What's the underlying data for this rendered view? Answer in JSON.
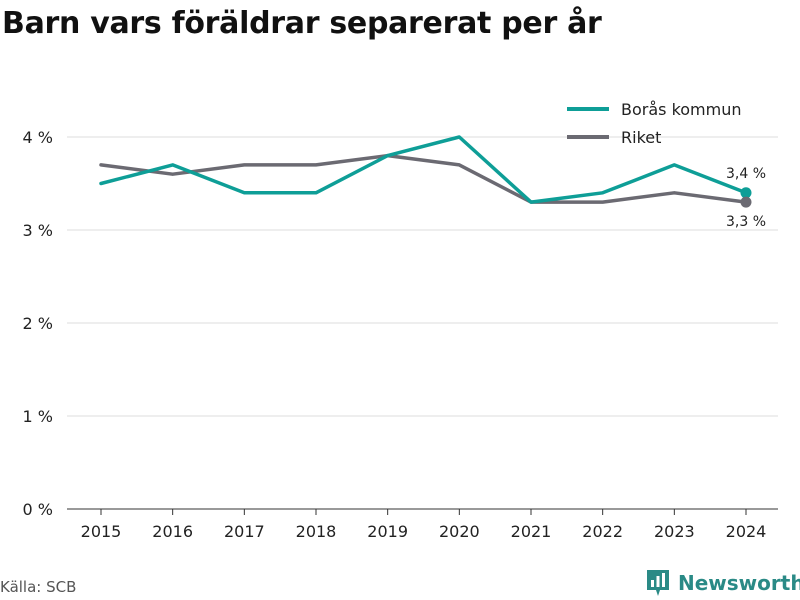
{
  "title": "Barn vars föräldrar separerat per år",
  "source": "Källa: SCB",
  "brand": {
    "name": "Newsworthy",
    "icon": "bar-chart-logo-icon",
    "color": "#2a8a86"
  },
  "chart_data": {
    "type": "line",
    "title": "Barn vars föräldrar separerat per år",
    "x": [
      "2015",
      "2016",
      "2017",
      "2018",
      "2019",
      "2020",
      "2021",
      "2022",
      "2023",
      "2024"
    ],
    "ylim": [
      0,
      4
    ],
    "yticks": [
      0,
      1,
      2,
      3,
      4
    ],
    "ytick_labels": [
      "0 %",
      "1 %",
      "2 %",
      "3 %",
      "4 %"
    ],
    "grid": true,
    "legend": "top-right",
    "series": [
      {
        "name": "Borås kommun",
        "color": "#0e9e97",
        "values": [
          3.5,
          3.7,
          3.4,
          3.4,
          3.8,
          4.0,
          3.3,
          3.4,
          3.7,
          3.4
        ],
        "end_label": "3,4 %"
      },
      {
        "name": "Riket",
        "color": "#6b6a72",
        "values": [
          3.7,
          3.6,
          3.7,
          3.7,
          3.8,
          3.7,
          3.3,
          3.3,
          3.4,
          3.3
        ],
        "end_label": "3,3 %"
      }
    ]
  }
}
